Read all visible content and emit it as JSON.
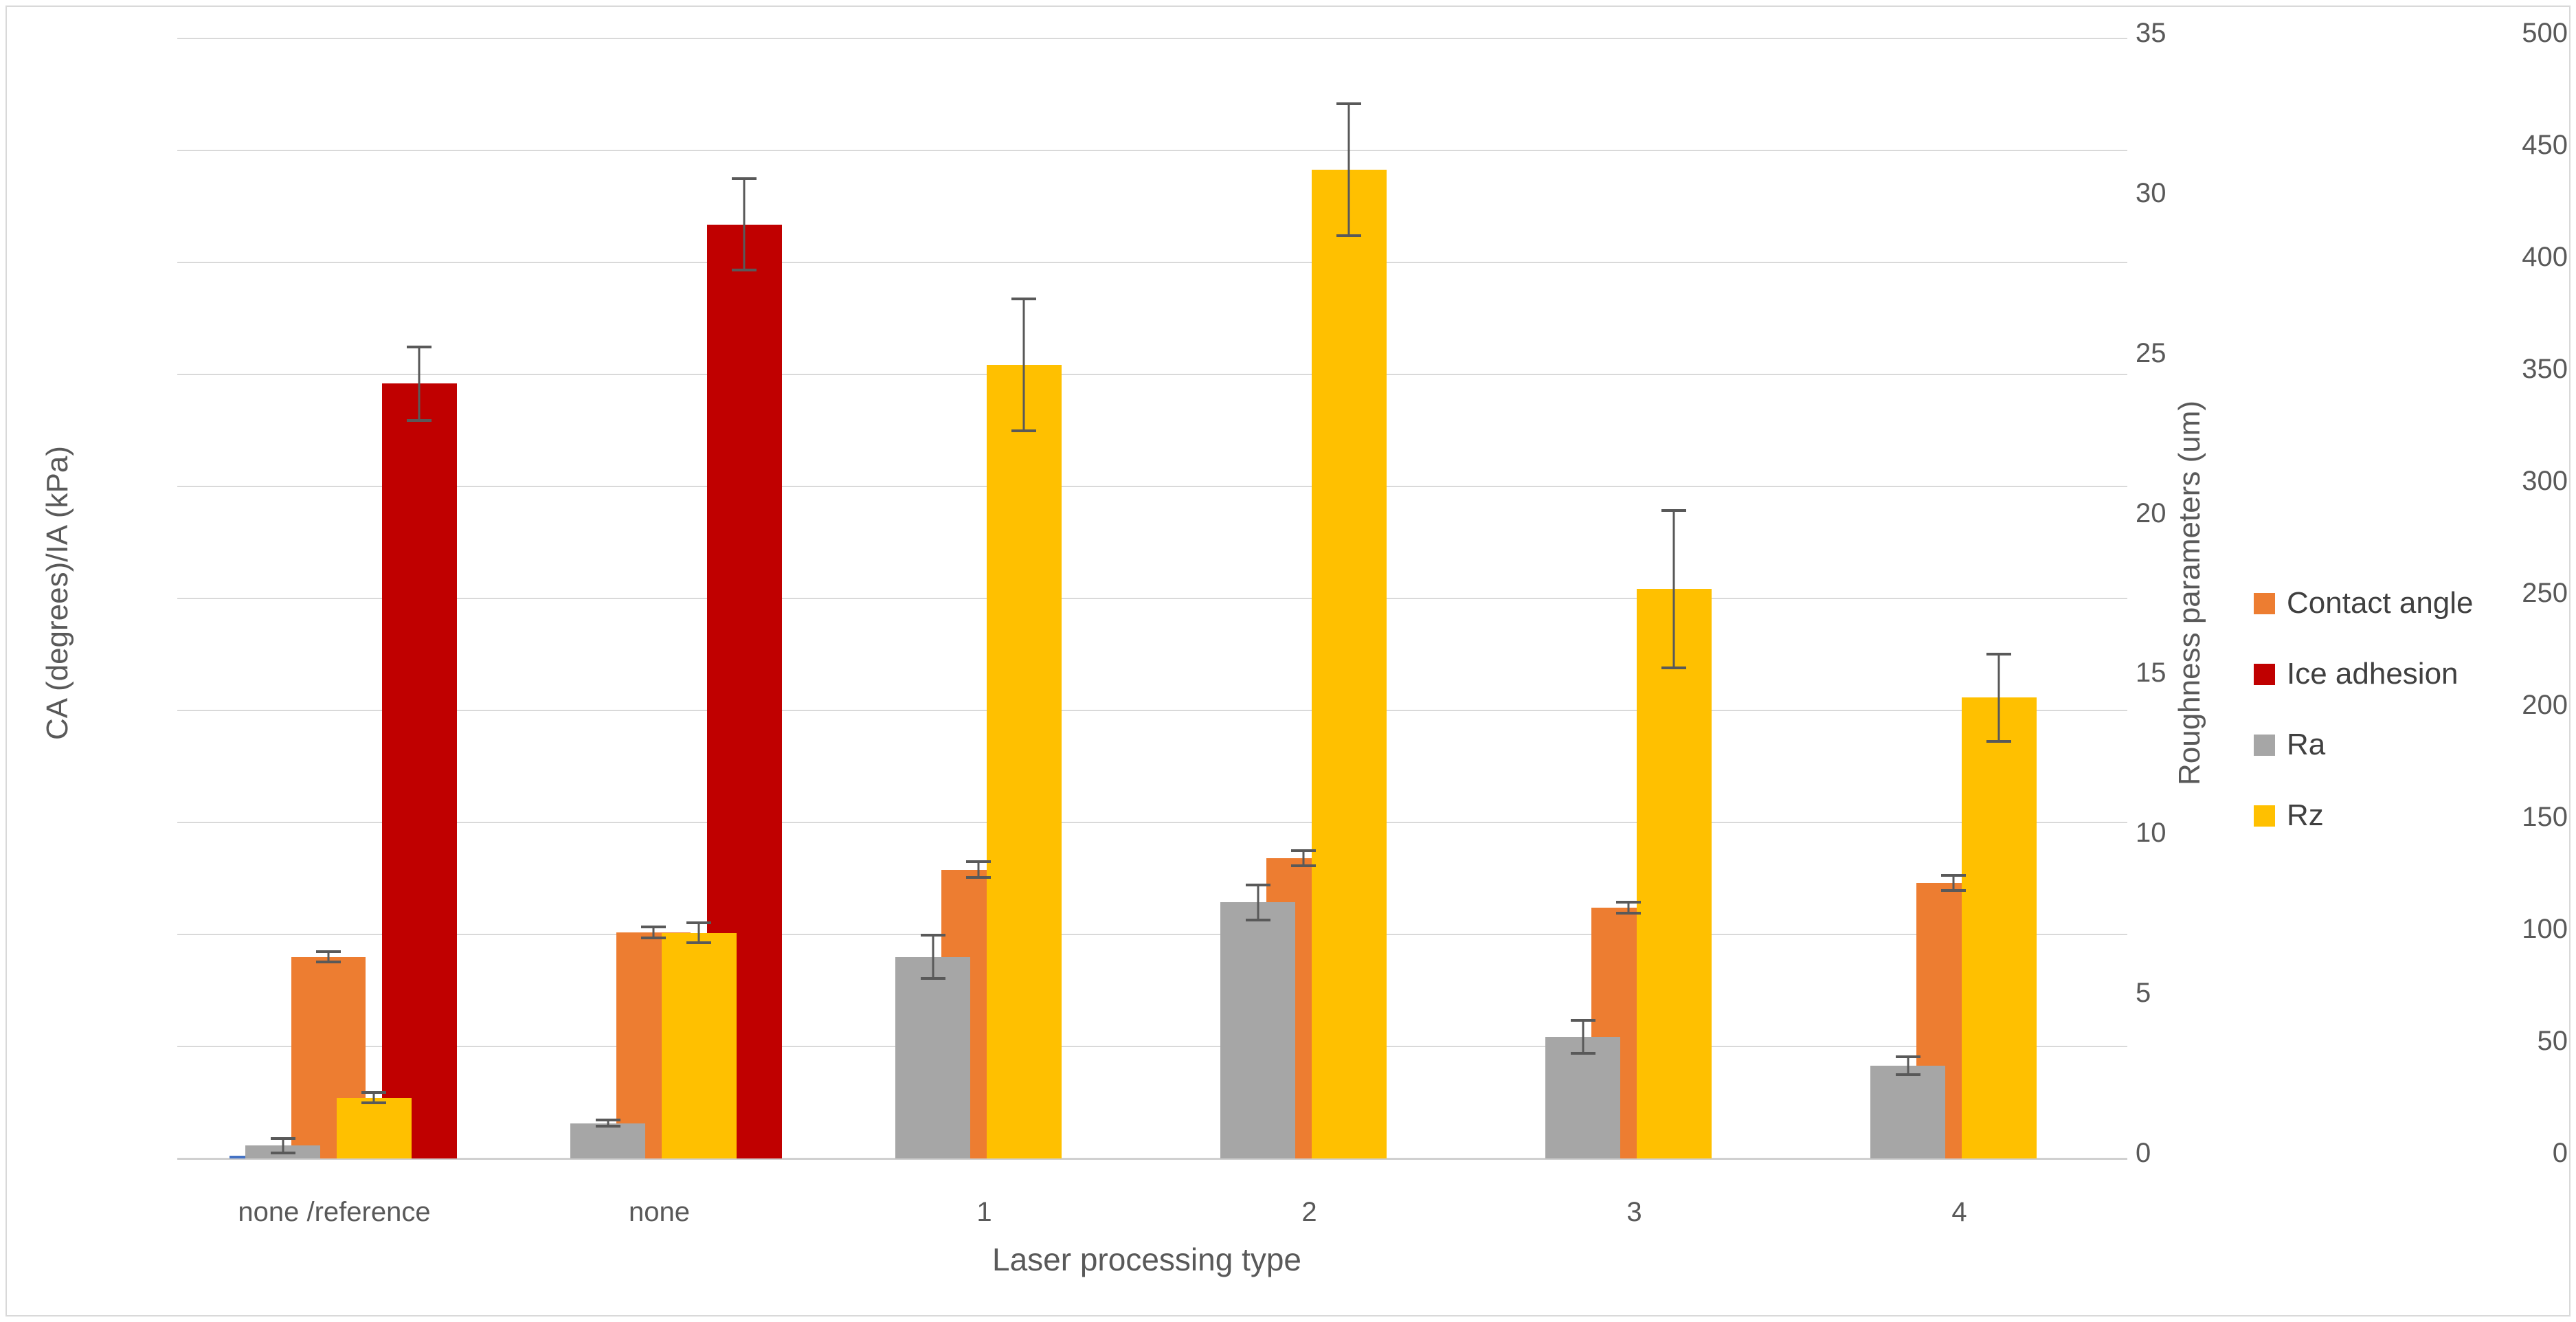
{
  "chart_data": {
    "type": "bar",
    "title": "",
    "xlabel": "Laser processing type",
    "ylabel_left": "CA (degrees)/IA (kPa)",
    "ylabel_right": "Roughness parameters (um)",
    "categories": [
      "none /reference",
      "none",
      "1",
      "2",
      "3",
      "4"
    ],
    "left_axis": {
      "min": 0,
      "max": 500,
      "step": 50,
      "ticks": [
        "0",
        "50",
        "100",
        "150",
        "200",
        "250",
        "300",
        "350",
        "400",
        "450",
        "500"
      ]
    },
    "right_axis": {
      "min": 0,
      "max": 35,
      "step": 5,
      "ticks": [
        "0",
        "5",
        "10",
        "15",
        "20",
        "25",
        "30",
        "35"
      ]
    },
    "grid": "horizontal",
    "legend": {
      "position": "right",
      "entries": [
        "Contact angle",
        "Ice adhesion",
        "Ra",
        "Rz"
      ]
    },
    "series": [
      {
        "name": "Contact angle",
        "axis": "left",
        "color": "#ED7D31",
        "values": [
          90,
          101,
          129,
          134,
          112,
          123
        ],
        "errors": [
          3,
          3,
          4,
          4,
          3,
          4
        ]
      },
      {
        "name": "Ice adhesion",
        "axis": "left",
        "color": "#C00000",
        "values": [
          346,
          417,
          null,
          null,
          null,
          null
        ],
        "errors": [
          17,
          21,
          null,
          null,
          null,
          null
        ]
      },
      {
        "name": "Ra",
        "axis": "right",
        "color": "#A6A6A6",
        "values": [
          0.4,
          1.1,
          6.3,
          8.0,
          3.8,
          2.9
        ],
        "errors": [
          0.27,
          0.14,
          0.72,
          0.59,
          0.56,
          0.33
        ]
      },
      {
        "name": "Rz",
        "axis": "right",
        "color": "#FFC000",
        "values": [
          1.9,
          7.05,
          24.8,
          30.9,
          17.8,
          14.4
        ],
        "errors": [
          0.2,
          0.35,
          2.1,
          2.1,
          2.5,
          1.4
        ]
      }
    ],
    "extras": {
      "unlabeled_blue_bar": {
        "category": "none /reference",
        "approx_value_left_axis": 1.2,
        "color": "#4472C4"
      }
    }
  },
  "colors": {
    "background": "#FFFFFF",
    "chart_border": "#D9D9D9",
    "gridline": "#D9D9D9",
    "tick_text": "#595959",
    "axis_title_text": "#595959",
    "legend_text": "#404040",
    "error_bar": "#595959"
  },
  "layout_hints": {
    "bar_slot_percent": {
      "Ra": 21,
      "Contact angle": 35,
      "Rz": 49,
      "Ice adhesion": 63
    },
    "bar_z": {
      "Contact angle": 1,
      "Ice adhesion": 2,
      "Ra": 3,
      "Rz": 4
    },
    "bar_width_percent": 23
  }
}
